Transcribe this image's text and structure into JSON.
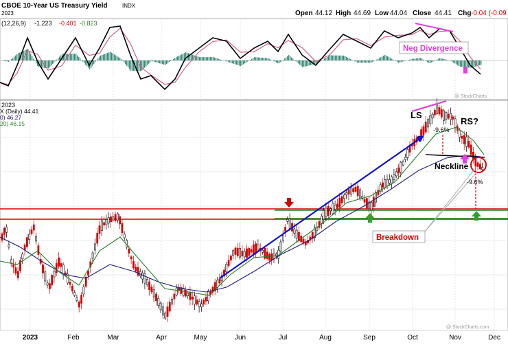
{
  "header": {
    "title": "CBOE 10-Year US Treasury Yield",
    "exchange": "INDX",
    "date_fragment": "2023",
    "open_label": "Open",
    "open": "44.12",
    "high_label": "High",
    "high": "44.69",
    "low_label": "Low",
    "low": "44.04",
    "close_label": "Close",
    "close": "44.41",
    "chg_label": "Chg",
    "chg": "-0.04 (-0.09",
    "watermark": "@ StockCharts"
  },
  "macd": {
    "label": "(12,26,9)",
    "v1": "-1.223",
    "v2": "-0.401",
    "v3": "-0.823",
    "annotation": "Neg Divergence",
    "watermark": "@ StockCharts"
  },
  "price_panel": {
    "date_fragment": "2023",
    "legend": [
      {
        "text": "X (Daily) 44.41",
        "color": "#000000"
      },
      {
        "text": "0) 46.27",
        "color": "#1a1a7a"
      },
      {
        "text": "20) 46.15",
        "color": "#2a7a2a"
      }
    ],
    "annotations": {
      "ls": "LS",
      "rs": "RS?",
      "neckline": "Neckline",
      "pct_left": "-9.6%",
      "pct_right": "-9.6%",
      "breakdown": "Breakdown"
    },
    "watermark": "@ StockCharts.com"
  },
  "xaxis": {
    "labels": [
      "2023",
      "Feb",
      "Mar",
      "Apr",
      "May",
      "Jun",
      "Jul",
      "Aug",
      "Sep",
      "Oct",
      "Nov",
      "Dec"
    ]
  },
  "colors": {
    "ma50": "#1a1a7a",
    "ma20": "#2a7a2a",
    "up": "#000000",
    "down": "#d40000",
    "resistance": "#d40000",
    "support": "#1a8a1a",
    "trendline": "#1010d0",
    "divergence": "#e040e0"
  },
  "chart_data": {
    "type": "candlestick",
    "series_note": "daily",
    "x": [
      "2023",
      "Feb",
      "Mar",
      "Apr",
      "May",
      "Jun",
      "Jul",
      "Aug",
      "Sep",
      "Oct",
      "Nov",
      "Dec"
    ],
    "last_close": 44.41,
    "ohlc_last": {
      "open": 44.12,
      "high": 44.69,
      "low": 44.04,
      "close": 44.41,
      "chg": -0.04
    },
    "macd_last": [
      -1.223,
      -0.401,
      -0.823
    ]
  }
}
